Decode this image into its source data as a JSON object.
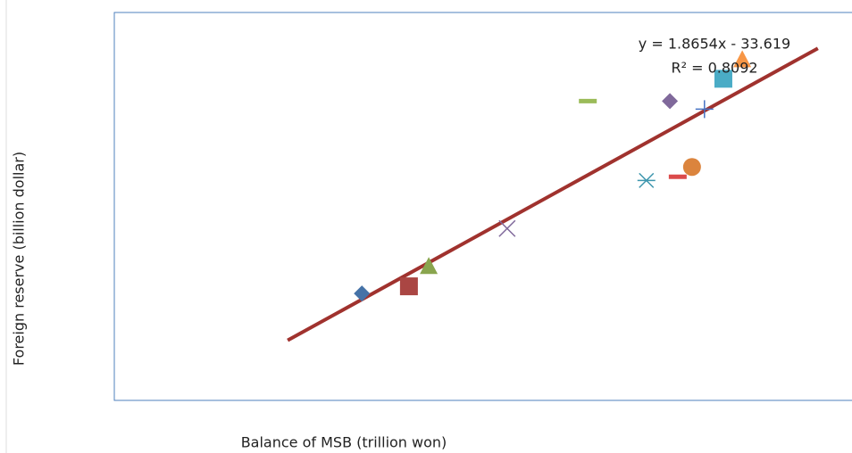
{
  "chart_data": {
    "type": "scatter",
    "x_label": "Balance of MSB (trillion won)",
    "y_label": "Foreign reserve (billion dollar)",
    "xlim": [
      40,
      200
    ],
    "ylim": [
      67,
      352
    ],
    "x": [
      93.7,
      103.9,
      108.2,
      125.2,
      155.4,
      162.2,
      165.3,
      168.0,
      160.5,
      142.7,
      172.1,
      176.2
    ],
    "values": [
      145.5,
      150.8,
      165.8,
      193.3,
      228.6,
      231.3,
      238.5,
      281.0,
      286.9,
      286.9,
      303.3,
      317.7
    ],
    "colors": [
      "#4572a7",
      "#aa4643",
      "#89a54e",
      "#80699b",
      "#3d96ae",
      "#db4a4a",
      "#db843d",
      "#4572c4",
      "#80699b",
      "#9bbb59",
      "#4aacc6",
      "#f79646"
    ],
    "markers": [
      "diamond",
      "square",
      "triangle",
      "x",
      "star",
      "dash",
      "circle",
      "plus",
      "diamond",
      "dash",
      "square",
      "triangle"
    ],
    "trendline": {
      "equation": "y = 1.8654x - 33.619",
      "r2_label": "R² = 0.8092",
      "slope": 1.8654,
      "intercept": -33.619,
      "r2": 0.8092,
      "x_range": [
        77.6,
        192.6
      ],
      "color": "#a0322e"
    }
  }
}
